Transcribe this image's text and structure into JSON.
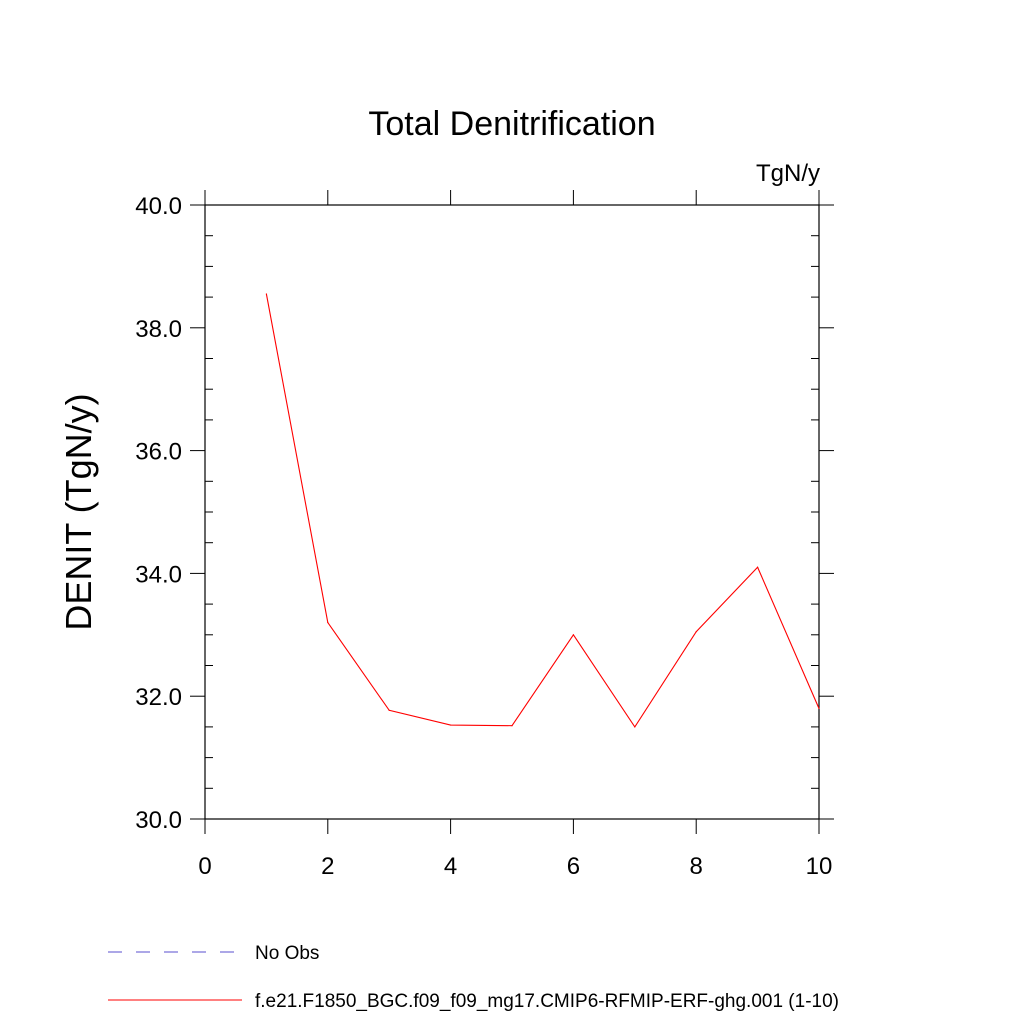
{
  "chart_data": {
    "type": "line",
    "title": "Total Denitrification",
    "units_label": "TgN/y",
    "xlabel": "",
    "ylabel": "DENIT  (TgN/y)",
    "xlim": [
      0,
      10
    ],
    "ylim": [
      30,
      40
    ],
    "x_ticks": [
      0,
      2,
      4,
      6,
      8,
      10
    ],
    "x_tick_labels": [
      "0",
      "2",
      "4",
      "6",
      "8",
      "10"
    ],
    "y_ticks": [
      30,
      32,
      34,
      36,
      38,
      40
    ],
    "y_tick_labels": [
      "30.0",
      "32.0",
      "34.0",
      "36.0",
      "38.0",
      "40.0"
    ],
    "grid": false,
    "series": [
      {
        "name": "f.e21.F1850_BGC.f09_f09_mg17.CMIP6-RFMIP-ERF-ghg.001 (1-10)",
        "color": "#ff0000",
        "style": "solid",
        "x": [
          1,
          2,
          3,
          4,
          5,
          6,
          7,
          8,
          9,
          10
        ],
        "values": [
          38.55,
          33.2,
          31.77,
          31.53,
          31.52,
          33.0,
          31.5,
          33.05,
          34.1,
          31.8
        ]
      }
    ],
    "legend": [
      {
        "label": "No Obs",
        "color": "#5a4fcf",
        "style": "dashed"
      },
      {
        "label": "f.e21.F1850_BGC.f09_f09_mg17.CMIP6-RFMIP-ERF-ghg.001 (1-10)",
        "color": "#ff0000",
        "style": "solid"
      }
    ],
    "legend_position": "bottom-left"
  }
}
